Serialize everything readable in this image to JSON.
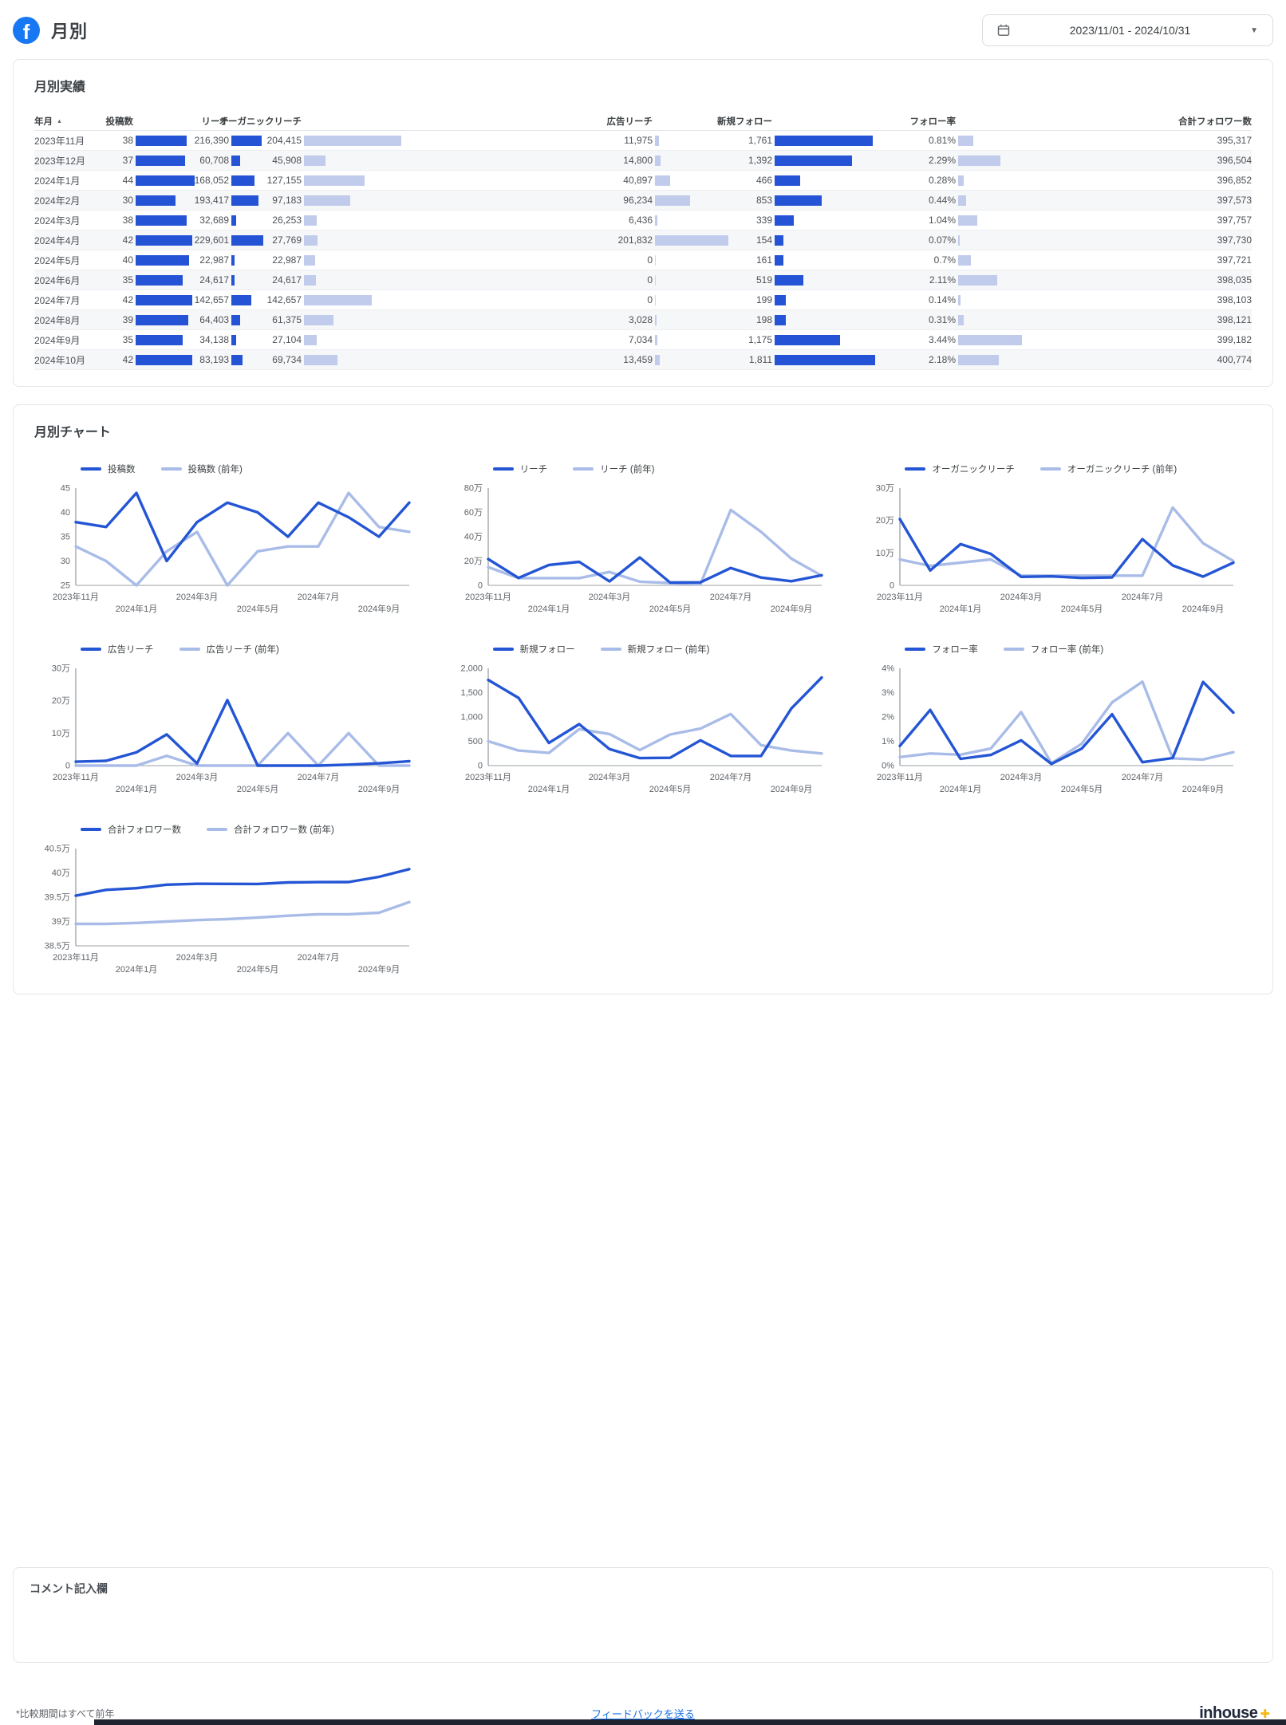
{
  "header": {
    "title": "月別",
    "date_range": "2023/11/01 - 2024/10/31"
  },
  "table_card": {
    "title": "月別実績",
    "sort_icon": "▲",
    "columns": [
      "年月",
      "投稿数",
      "リーチ",
      "オーガニックリーチ",
      "広告リーチ",
      "新規フォロー",
      "フォロー率",
      "合計フォロワー数"
    ],
    "rows": [
      {
        "month": "2023年11月",
        "cells": [
          "38",
          "216,390",
          "204,415",
          "11,975",
          "1,761",
          "0.81%",
          "395,317"
        ]
      },
      {
        "month": "2023年12月",
        "cells": [
          "37",
          "60,708",
          "45,908",
          "14,800",
          "1,392",
          "2.29%",
          "396,504"
        ]
      },
      {
        "month": "2024年1月",
        "cells": [
          "44",
          "168,052",
          "127,155",
          "40,897",
          "466",
          "0.28%",
          "396,852"
        ]
      },
      {
        "month": "2024年2月",
        "cells": [
          "30",
          "193,417",
          "97,183",
          "96,234",
          "853",
          "0.44%",
          "397,573"
        ]
      },
      {
        "month": "2024年3月",
        "cells": [
          "38",
          "32,689",
          "26,253",
          "6,436",
          "339",
          "1.04%",
          "397,757"
        ]
      },
      {
        "month": "2024年4月",
        "cells": [
          "42",
          "229,601",
          "27,769",
          "201,832",
          "154",
          "0.07%",
          "397,730"
        ]
      },
      {
        "month": "2024年5月",
        "cells": [
          "40",
          "22,987",
          "22,987",
          "0",
          "161",
          "0.7%",
          "397,721"
        ]
      },
      {
        "month": "2024年6月",
        "cells": [
          "35",
          "24,617",
          "24,617",
          "0",
          "519",
          "2.11%",
          "398,035"
        ]
      },
      {
        "month": "2024年7月",
        "cells": [
          "42",
          "142,657",
          "142,657",
          "0",
          "199",
          "0.14%",
          "398,103"
        ]
      },
      {
        "month": "2024年8月",
        "cells": [
          "39",
          "64,403",
          "61,375",
          "3,028",
          "198",
          "0.31%",
          "398,121"
        ]
      },
      {
        "month": "2024年9月",
        "cells": [
          "35",
          "34,138",
          "27,104",
          "7,034",
          "1,175",
          "3.44%",
          "399,182"
        ]
      },
      {
        "month": "2024年10月",
        "cells": [
          "42",
          "83,193",
          "69,734",
          "13,459",
          "1,811",
          "2.18%",
          "400,774"
        ]
      }
    ]
  },
  "chart_card": {
    "title": "月別チャート"
  },
  "chart_data": [
    {
      "type": "line",
      "key": "posts",
      "x_labels": [
        "2023年11月",
        "2024年1月",
        "2024年3月",
        "2024年5月",
        "2024年7月",
        "2024年9月"
      ],
      "ylim": [
        25,
        45
      ],
      "yticks": [
        [
          25,
          "25"
        ],
        [
          30,
          "30"
        ],
        [
          35,
          "35"
        ],
        [
          40,
          "40"
        ],
        [
          45,
          "45"
        ]
      ],
      "series": [
        {
          "name": "投稿数",
          "values": [
            38,
            37,
            44,
            30,
            38,
            42,
            40,
            35,
            42,
            39,
            35,
            42
          ]
        },
        {
          "name": "投稿数 (前年)",
          "values": [
            33,
            30,
            25,
            32,
            36,
            25,
            32,
            33,
            33,
            44,
            37,
            36
          ]
        }
      ]
    },
    {
      "type": "line",
      "key": "reach",
      "x_labels": [
        "2023年11月",
        "2024年1月",
        "2024年3月",
        "2024年5月",
        "2024年7月",
        "2024年9月"
      ],
      "ylim": [
        0,
        800000
      ],
      "yticks": [
        [
          0,
          "0"
        ],
        [
          200000,
          "20万"
        ],
        [
          400000,
          "40万"
        ],
        [
          600000,
          "60万"
        ],
        [
          800000,
          "80万"
        ]
      ],
      "series": [
        {
          "name": "リーチ",
          "values": [
            216390,
            60708,
            168052,
            193417,
            32689,
            229601,
            22987,
            24617,
            142657,
            64403,
            34138,
            83193
          ]
        },
        {
          "name": "リーチ (前年)",
          "values": [
            150000,
            60000,
            60000,
            60000,
            110000,
            30000,
            20000,
            10000,
            620000,
            440000,
            220000,
            80000
          ]
        }
      ]
    },
    {
      "type": "line",
      "key": "organic-reach",
      "x_labels": [
        "2023年11月",
        "2024年1月",
        "2024年3月",
        "2024年5月",
        "2024年7月",
        "2024年9月"
      ],
      "ylim": [
        0,
        300000
      ],
      "yticks": [
        [
          0,
          "0"
        ],
        [
          100000,
          "10万"
        ],
        [
          200000,
          "20万"
        ],
        [
          300000,
          "30万"
        ]
      ],
      "series": [
        {
          "name": "オーガニックリーチ",
          "values": [
            204415,
            45908,
            127155,
            97183,
            26253,
            27769,
            22987,
            24617,
            142657,
            61375,
            27104,
            69734
          ]
        },
        {
          "name": "オーガニックリーチ (前年)",
          "values": [
            80000,
            60000,
            70000,
            80000,
            30000,
            30000,
            30000,
            30000,
            30000,
            240000,
            130000,
            75000
          ]
        }
      ]
    },
    {
      "type": "line",
      "key": "ad-reach",
      "x_labels": [
        "2023年11月",
        "2024年1月",
        "2024年3月",
        "2024年5月",
        "2024年7月",
        "2024年9月"
      ],
      "ylim": [
        0,
        300000
      ],
      "yticks": [
        [
          0,
          "0"
        ],
        [
          100000,
          "10万"
        ],
        [
          200000,
          "20万"
        ],
        [
          300000,
          "30万"
        ]
      ],
      "series": [
        {
          "name": "広告リーチ",
          "values": [
            11975,
            14800,
            40897,
            96234,
            6436,
            201832,
            0,
            0,
            0,
            3028,
            7034,
            13459
          ]
        },
        {
          "name": "広告リーチ (前年)",
          "values": [
            0,
            0,
            0,
            30000,
            0,
            0,
            0,
            100000,
            0,
            100000,
            0,
            0
          ]
        }
      ]
    },
    {
      "type": "line",
      "key": "new-follows",
      "x_labels": [
        "2023年11月",
        "2024年1月",
        "2024年3月",
        "2024年5月",
        "2024年7月",
        "2024年9月"
      ],
      "ylim": [
        0,
        2000
      ],
      "yticks": [
        [
          0,
          "0"
        ],
        [
          500,
          "500"
        ],
        [
          1000,
          "1,000"
        ],
        [
          1500,
          "1,500"
        ],
        [
          2000,
          "2,000"
        ]
      ],
      "series": [
        {
          "name": "新規フォロー",
          "values": [
            1761,
            1392,
            466,
            853,
            339,
            154,
            161,
            519,
            199,
            198,
            1175,
            1811
          ]
        },
        {
          "name": "新規フォロー (前年)",
          "values": [
            500,
            310,
            260,
            750,
            650,
            320,
            640,
            760,
            1060,
            420,
            310,
            250
          ]
        }
      ]
    },
    {
      "type": "line",
      "key": "follow-rate",
      "x_labels": [
        "2023年11月",
        "2024年1月",
        "2024年3月",
        "2024年5月",
        "2024年7月",
        "2024年9月"
      ],
      "ylim": [
        0,
        4
      ],
      "yticks": [
        [
          0,
          "0%"
        ],
        [
          1,
          "1%"
        ],
        [
          2,
          "2%"
        ],
        [
          3,
          "3%"
        ],
        [
          4,
          "4%"
        ]
      ],
      "series": [
        {
          "name": "フォロー率",
          "values": [
            0.81,
            2.29,
            0.28,
            0.44,
            1.04,
            0.07,
            0.7,
            2.11,
            0.14,
            0.31,
            3.44,
            2.18
          ]
        },
        {
          "name": "フォロー率 (前年)",
          "values": [
            0.35,
            0.5,
            0.45,
            0.7,
            2.2,
            0.1,
            0.9,
            2.6,
            3.45,
            0.3,
            0.25,
            0.55
          ]
        }
      ]
    },
    {
      "type": "line",
      "key": "total-followers",
      "x_labels": [
        "2023年11月",
        "2024年1月",
        "2024年3月",
        "2024年5月",
        "2024年7月",
        "2024年9月"
      ],
      "ylim": [
        385000,
        405000
      ],
      "yticks": [
        [
          385000,
          "38.5万"
        ],
        [
          390000,
          "39万"
        ],
        [
          395000,
          "39.5万"
        ],
        [
          400000,
          "40万"
        ],
        [
          405000,
          "40.5万"
        ]
      ],
      "series": [
        {
          "name": "合計フォロワー数",
          "values": [
            395317,
            396504,
            396852,
            397573,
            397757,
            397730,
            397721,
            398035,
            398103,
            398121,
            399182,
            400774
          ]
        },
        {
          "name": "合計フォロワー数 (前年)",
          "values": [
            389500,
            389500,
            389700,
            390000,
            390300,
            390500,
            390800,
            391200,
            391500,
            391500,
            391800,
            394000
          ]
        }
      ]
    }
  ],
  "comment_card": {
    "title": "コメント記入欄"
  },
  "footer": {
    "note": "*比較期間はすべて前年",
    "feedback_link": "フィードバックを送る",
    "logo_text": "inhouse",
    "logo_plus": "✚"
  },
  "colors": {
    "facebook_blue": "#1877F2",
    "series_current": "#2355d4",
    "series_previous": "#a9bce8",
    "table_bar_dark": "#2453d6",
    "table_bar_light": "#c1cbec",
    "link": "#1a73e8"
  }
}
